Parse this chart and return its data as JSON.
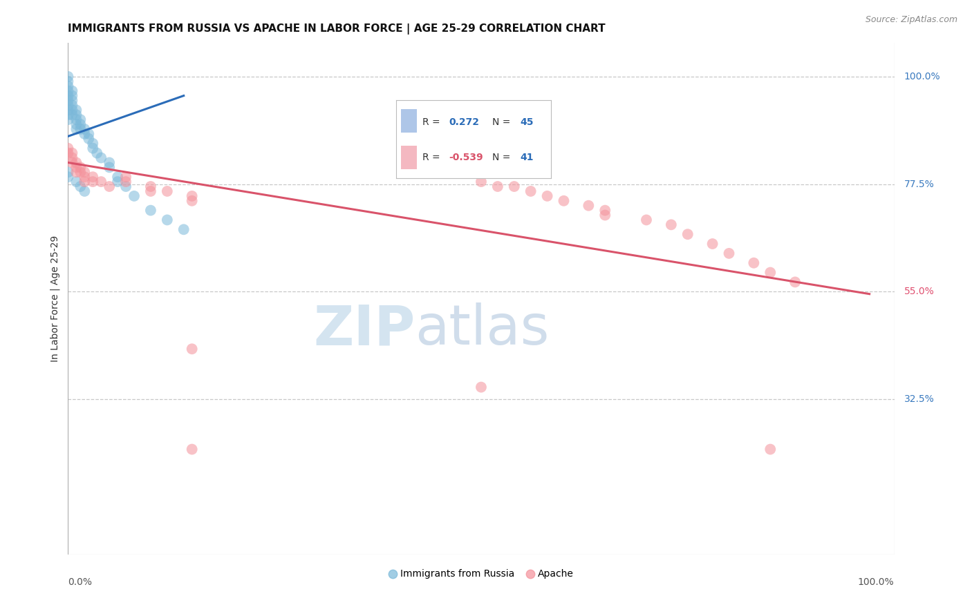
{
  "title": "IMMIGRANTS FROM RUSSIA VS APACHE IN LABOR FORCE | AGE 25-29 CORRELATION CHART",
  "source": "Source: ZipAtlas.com",
  "ylabel": "In Labor Force | Age 25-29",
  "right_ticks": [
    {
      "label": "100.0%",
      "yval": 1.0,
      "color": "#3a7abf"
    },
    {
      "label": "77.5%",
      "yval": 0.775,
      "color": "#3a7abf"
    },
    {
      "label": "55.0%",
      "yval": 0.55,
      "color": "#e05070"
    },
    {
      "label": "32.5%",
      "yval": 0.325,
      "color": "#3a7abf"
    }
  ],
  "russia_color": "#7ab8d9",
  "apache_color": "#f4919a",
  "russia_scatter_x": [
    0.0,
    0.0,
    0.0,
    0.0,
    0.0,
    0.0,
    0.0,
    0.0,
    0.0,
    0.0,
    0.005,
    0.005,
    0.005,
    0.005,
    0.005,
    0.005,
    0.01,
    0.01,
    0.01,
    0.01,
    0.01,
    0.015,
    0.015,
    0.015,
    0.02,
    0.02,
    0.025,
    0.025,
    0.03,
    0.03,
    0.035,
    0.04,
    0.05,
    0.05,
    0.06,
    0.06,
    0.07,
    0.08,
    0.1,
    0.12,
    0.14,
    0.0,
    0.0,
    0.01,
    0.015,
    0.02
  ],
  "russia_scatter_y": [
    1.0,
    0.99,
    0.98,
    0.97,
    0.96,
    0.95,
    0.94,
    0.93,
    0.92,
    0.91,
    0.97,
    0.96,
    0.95,
    0.94,
    0.93,
    0.92,
    0.93,
    0.92,
    0.91,
    0.9,
    0.89,
    0.91,
    0.9,
    0.89,
    0.89,
    0.88,
    0.88,
    0.87,
    0.86,
    0.85,
    0.84,
    0.83,
    0.82,
    0.81,
    0.79,
    0.78,
    0.77,
    0.75,
    0.72,
    0.7,
    0.68,
    0.8,
    0.79,
    0.78,
    0.77,
    0.76
  ],
  "apache_scatter_x": [
    0.0,
    0.0,
    0.005,
    0.005,
    0.005,
    0.01,
    0.01,
    0.01,
    0.015,
    0.015,
    0.02,
    0.02,
    0.02,
    0.03,
    0.03,
    0.04,
    0.05,
    0.07,
    0.07,
    0.1,
    0.1,
    0.12,
    0.15,
    0.15,
    0.5,
    0.52,
    0.54,
    0.56,
    0.58,
    0.6,
    0.63,
    0.65,
    0.65,
    0.7,
    0.73,
    0.75,
    0.78,
    0.8,
    0.83,
    0.85,
    0.88
  ],
  "apache_scatter_y": [
    0.85,
    0.84,
    0.84,
    0.83,
    0.82,
    0.82,
    0.81,
    0.8,
    0.81,
    0.8,
    0.8,
    0.79,
    0.78,
    0.79,
    0.78,
    0.78,
    0.77,
    0.79,
    0.78,
    0.77,
    0.76,
    0.76,
    0.75,
    0.74,
    0.78,
    0.77,
    0.77,
    0.76,
    0.75,
    0.74,
    0.73,
    0.72,
    0.71,
    0.7,
    0.69,
    0.67,
    0.65,
    0.63,
    0.61,
    0.59,
    0.57
  ],
  "russia_line_x": [
    0.0,
    0.14
  ],
  "russia_line_y": [
    0.875,
    0.96
  ],
  "apache_line_x": [
    0.0,
    0.97
  ],
  "apache_line_y": [
    0.82,
    0.545
  ],
  "apache_extra_points": [
    [
      0.15,
      0.43
    ],
    [
      0.15,
      0.22
    ],
    [
      0.5,
      0.35
    ],
    [
      0.85,
      0.22
    ]
  ],
  "xlim": [
    0.0,
    1.0
  ],
  "ylim": [
    0.0,
    1.07
  ],
  "background_color": "#ffffff",
  "grid_color": "#c8c8c8",
  "title_fontsize": 11,
  "source_fontsize": 9
}
